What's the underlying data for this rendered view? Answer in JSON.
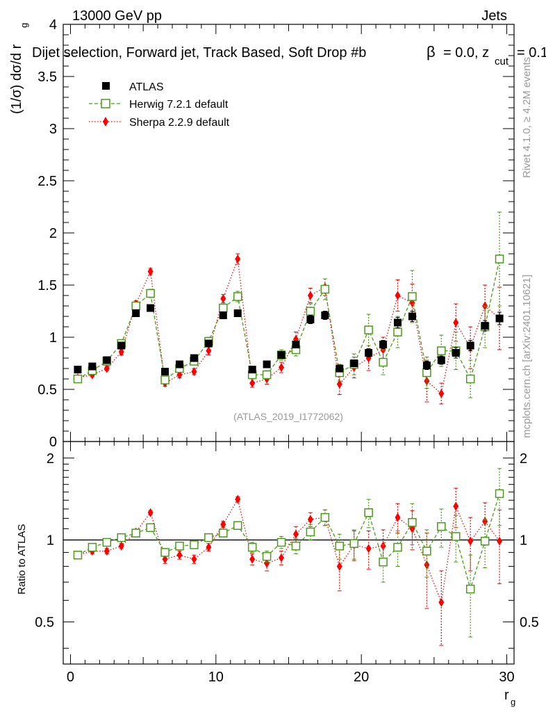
{
  "header": {
    "energy": "13000 GeV pp",
    "process": "Jets",
    "selection": "Dijet selection, Forward jet, Track Based, Soft Drop #b",
    "beta_text": "= 0.0, z",
    "zcut_sub": "cut",
    "zcut_val": "= 0.1"
  },
  "side": {
    "rivet": "Rivet 4.1.0, ≥ 4.2M events",
    "mcplots": "mcplots.cern.ch [arXiv:2401.10621]"
  },
  "analysis_id": "(ATLAS_2019_I1772062)",
  "colors": {
    "atlas": "#000000",
    "herwig": "#4a9a1a",
    "sherpa": "#ff0000"
  },
  "chart_data": [
    {
      "type": "scatter",
      "title": "Dijet selection, Forward jet, Track Based, Soft Drop",
      "ylabel": "(1/σ) dσ/d r",
      "ylabel_sub": "g",
      "xlim": [
        -0.5,
        30.5
      ],
      "ylim": [
        0,
        4
      ],
      "yticks": [
        "0",
        "0.5",
        "1",
        "1.5",
        "2",
        "2.5",
        "3",
        "3.5",
        "4"
      ],
      "ytick_values": [
        0,
        0.5,
        1,
        1.5,
        2,
        2.5,
        3,
        3.5,
        4
      ],
      "x": [
        0.5,
        1.5,
        2.5,
        3.5,
        4.5,
        5.5,
        6.5,
        7.5,
        8.5,
        9.5,
        10.5,
        11.5,
        12.5,
        13.5,
        14.5,
        15.5,
        16.5,
        17.5,
        18.5,
        19.5,
        20.5,
        21.5,
        22.5,
        23.5,
        24.5,
        25.5,
        26.5,
        27.5,
        28.5,
        29.5
      ],
      "series": [
        {
          "name": "ATLAS",
          "marker": "square",
          "values": [
            0.69,
            0.72,
            0.78,
            0.92,
            1.23,
            1.28,
            0.67,
            0.74,
            0.8,
            0.94,
            1.21,
            1.23,
            0.69,
            0.74,
            0.83,
            0.93,
            1.17,
            1.21,
            0.7,
            0.75,
            0.85,
            0.93,
            1.14,
            1.2,
            0.73,
            0.78,
            0.85,
            0.92,
            1.11,
            1.18
          ],
          "err": [
            0.02,
            0.02,
            0.02,
            0.02,
            0.03,
            0.03,
            0.02,
            0.02,
            0.02,
            0.03,
            0.03,
            0.03,
            0.02,
            0.02,
            0.03,
            0.03,
            0.04,
            0.04,
            0.03,
            0.03,
            0.04,
            0.04,
            0.05,
            0.05,
            0.04,
            0.04,
            0.05,
            0.05,
            0.05,
            0.06
          ]
        },
        {
          "name": "Herwig 7.2.1 default",
          "marker": "open-square",
          "values": [
            0.6,
            0.68,
            0.77,
            0.94,
            1.3,
            1.42,
            0.59,
            0.7,
            0.77,
            0.96,
            1.28,
            1.39,
            0.64,
            0.64,
            0.83,
            0.88,
            1.25,
            1.46,
            0.66,
            0.74,
            1.07,
            0.76,
            1.05,
            1.39,
            0.66,
            0.87,
            0.87,
            0.6,
            1.1,
            1.75
          ],
          "err": [
            0.02,
            0.02,
            0.02,
            0.03,
            0.04,
            0.04,
            0.03,
            0.03,
            0.03,
            0.04,
            0.04,
            0.05,
            0.04,
            0.04,
            0.05,
            0.06,
            0.07,
            0.1,
            0.08,
            0.1,
            0.15,
            0.12,
            0.15,
            0.25,
            0.15,
            0.15,
            0.18,
            0.18,
            0.2,
            0.45
          ]
        },
        {
          "name": "Sherpa 2.2.9 default",
          "marker": "diamond",
          "values": [
            0.61,
            0.64,
            0.7,
            0.86,
            1.32,
            1.63,
            0.56,
            0.64,
            0.67,
            0.87,
            1.37,
            1.75,
            0.56,
            0.6,
            0.71,
            0.98,
            1.4,
            1.48,
            0.55,
            0.71,
            0.8,
            0.88,
            1.4,
            1.33,
            0.58,
            0.46,
            1.14,
            0.9,
            1.3,
            1.18
          ],
          "err": [
            0.02,
            0.02,
            0.02,
            0.03,
            0.03,
            0.03,
            0.03,
            0.03,
            0.03,
            0.04,
            0.04,
            0.05,
            0.04,
            0.05,
            0.05,
            0.07,
            0.07,
            0.08,
            0.1,
            0.1,
            0.12,
            0.12,
            0.15,
            0.18,
            0.2,
            0.1,
            0.18,
            0.2,
            0.2,
            0.3
          ]
        }
      ],
      "legend": "top-left"
    },
    {
      "type": "scatter",
      "title": "Ratio",
      "ylabel": "Ratio to ATLAS",
      "xlabel": "r",
      "xlabel_sub": "g",
      "xlim": [
        -0.5,
        30.5
      ],
      "xticks": [
        "0",
        "10",
        "20",
        "30"
      ],
      "xtick_values": [
        0,
        10,
        20,
        30
      ],
      "ylim": [
        0.35,
        2.3
      ],
      "yticks": [
        "0.5",
        "1",
        "2"
      ],
      "ytick_values": [
        0.5,
        1,
        2
      ],
      "reference_line": 1,
      "x": [
        0.5,
        1.5,
        2.5,
        3.5,
        4.5,
        5.5,
        6.5,
        7.5,
        8.5,
        9.5,
        10.5,
        11.5,
        12.5,
        13.5,
        14.5,
        15.5,
        16.5,
        17.5,
        18.5,
        19.5,
        20.5,
        21.5,
        22.5,
        23.5,
        24.5,
        25.5,
        26.5,
        27.5,
        28.5,
        29.5
      ],
      "series": [
        {
          "name": "Herwig 7.2.1 default",
          "marker": "open-square",
          "values": [
            0.88,
            0.94,
            0.98,
            1.02,
            1.06,
            1.11,
            0.9,
            0.95,
            0.96,
            1.02,
            1.06,
            1.13,
            0.94,
            0.87,
            0.98,
            0.95,
            1.07,
            1.21,
            0.95,
            0.97,
            1.26,
            0.83,
            0.94,
            1.16,
            0.91,
            1.12,
            1.03,
            0.66,
            0.99,
            1.48
          ],
          "err": [
            0.02,
            0.02,
            0.02,
            0.02,
            0.02,
            0.02,
            0.03,
            0.03,
            0.03,
            0.03,
            0.03,
            0.03,
            0.04,
            0.04,
            0.05,
            0.06,
            0.07,
            0.08,
            0.1,
            0.12,
            0.15,
            0.13,
            0.14,
            0.2,
            0.18,
            0.18,
            0.2,
            0.22,
            0.2,
            0.35
          ]
        },
        {
          "name": "Sherpa 2.2.9 default",
          "marker": "diamond",
          "values": [
            0.88,
            0.91,
            0.91,
            0.95,
            1.07,
            1.26,
            0.85,
            0.88,
            0.85,
            0.94,
            1.14,
            1.41,
            0.85,
            0.82,
            0.86,
            1.05,
            1.19,
            1.21,
            0.8,
            0.96,
            0.93,
            0.95,
            1.21,
            1.1,
            0.81,
            0.59,
            1.33,
            0.99,
            1.17,
            0.99
          ],
          "err": [
            0.02,
            0.02,
            0.02,
            0.02,
            0.02,
            0.02,
            0.03,
            0.03,
            0.03,
            0.03,
            0.03,
            0.03,
            0.04,
            0.05,
            0.05,
            0.07,
            0.07,
            0.08,
            0.15,
            0.12,
            0.15,
            0.14,
            0.15,
            0.18,
            0.25,
            0.18,
            0.22,
            0.22,
            0.2,
            0.3
          ]
        }
      ]
    }
  ]
}
